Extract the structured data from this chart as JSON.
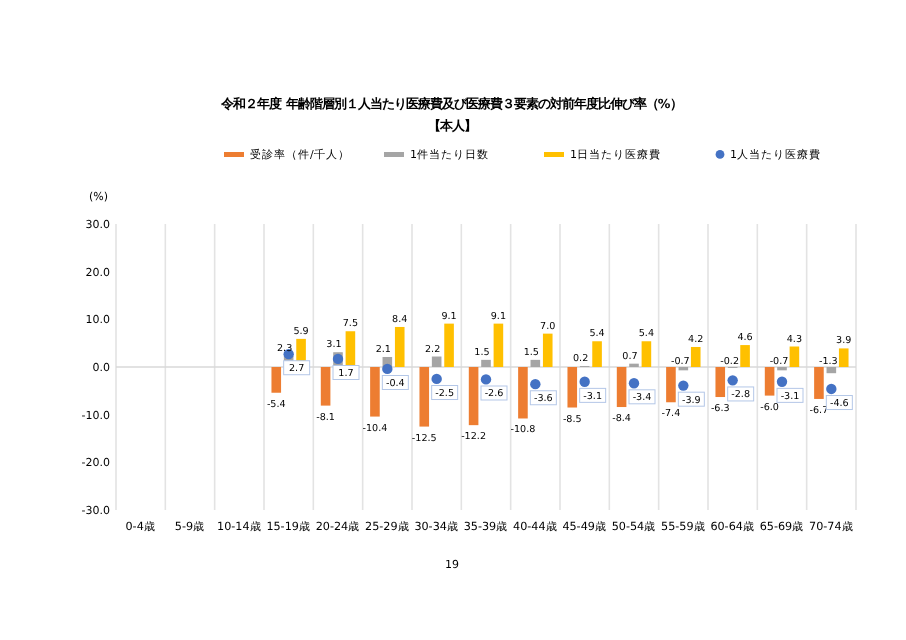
{
  "chart_data": {
    "type": "bar",
    "title": "令和２年度 年齢階層別１人当たり医療費及び医療費３要素の対前年度比伸び率（%）",
    "subtitle": "【本人】",
    "ylabel": "(%)",
    "categories": [
      "0-4歳",
      "5-9歳",
      "10-14歳",
      "15-19歳",
      "20-24歳",
      "25-29歳",
      "30-34歳",
      "35-39歳",
      "40-44歳",
      "45-49歳",
      "50-54歳",
      "55-59歳",
      "60-64歳",
      "65-69歳",
      "70-74歳"
    ],
    "series": [
      {
        "name": "受診率（件/千人）",
        "color": "#ed7d31",
        "values": [
          null,
          null,
          null,
          -5.4,
          -8.1,
          -10.4,
          -12.5,
          -12.2,
          -10.8,
          -8.5,
          -8.4,
          -7.4,
          -6.3,
          -6.0,
          -6.7
        ],
        "value_labels": [
          null,
          null,
          null,
          "-5.4",
          "-8.1",
          "-10.4",
          "-12.5",
          "-12.2",
          "-10.8",
          "-8.5",
          "-8.4",
          "-7.4",
          "-6.3",
          "-6.0",
          "-6.7"
        ]
      },
      {
        "name": "1件当たり日数",
        "color": "#a5a5a5",
        "values": [
          null,
          null,
          null,
          2.3,
          3.1,
          2.1,
          2.2,
          1.5,
          1.5,
          0.2,
          0.7,
          -0.7,
          -0.2,
          -0.7,
          -1.3
        ],
        "value_labels": [
          null,
          null,
          null,
          "2.3",
          "3.1",
          "2.1",
          "2.2",
          "1.5",
          "1.5",
          "0.2",
          "0.7",
          "-0.7",
          "-0.2",
          "-0.7",
          "-1.3"
        ]
      },
      {
        "name": "1日当たり医療費",
        "color": "#ffc000",
        "values": [
          null,
          null,
          null,
          5.9,
          7.5,
          8.4,
          9.1,
          9.1,
          7.0,
          5.4,
          5.4,
          4.2,
          4.6,
          4.3,
          3.9
        ],
        "value_labels": [
          null,
          null,
          null,
          "5.9",
          "7.5",
          "8.4",
          "9.1",
          "9.1",
          "7.0",
          "5.4",
          "5.4",
          "4.2",
          "4.6",
          "4.3",
          "3.9"
        ]
      },
      {
        "name": "1人当たり医療費",
        "type": "scatter",
        "marker": "circle",
        "color": "#4472c4",
        "values": [
          null,
          null,
          null,
          2.7,
          1.7,
          -0.4,
          -2.5,
          -2.6,
          -3.6,
          -3.1,
          -3.4,
          -3.9,
          -2.8,
          -3.1,
          -4.6
        ],
        "value_labels": [
          null,
          null,
          null,
          "2.7",
          "1.7",
          "-0.4",
          "-2.5",
          "-2.6",
          "-3.6",
          "-3.1",
          "-3.4",
          "-3.9",
          "-2.8",
          "-3.1",
          "-4.6"
        ]
      }
    ],
    "ylim": [
      -30,
      30
    ],
    "yticks": [
      {
        "value": -30,
        "label": "-30.0"
      },
      {
        "value": -20,
        "label": "-20.0"
      },
      {
        "value": -10,
        "label": "-10.0"
      },
      {
        "value": 0,
        "label": "0.0"
      },
      {
        "value": 10,
        "label": "10.0"
      },
      {
        "value": 20,
        "label": "20.0"
      },
      {
        "value": 30,
        "label": "30.0"
      }
    ],
    "grid": "x",
    "legend": "top",
    "annotations": [
      "19"
    ]
  }
}
